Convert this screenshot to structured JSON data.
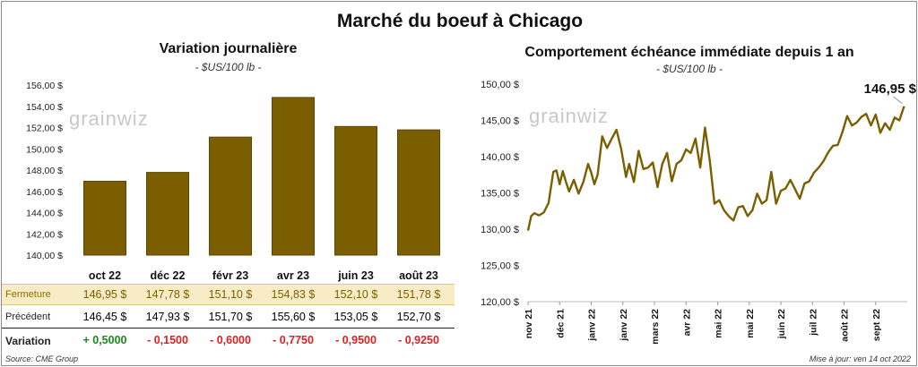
{
  "title": "Marché du boeuf à Chicago",
  "left_title": "Variation  journalière",
  "left_unit": "- $US/100 lb -",
  "right_title": "Comportement  échéance immédiate depuis 1 an",
  "right_unit": "- $US/100 lb -",
  "logo_text": "grainwiz",
  "source": "Source: CME Group",
  "updated": "Mise à jour: ven 14 oct 2022",
  "colors": {
    "bar": "#7b5e00",
    "bar_stroke": "#5c4500",
    "line": "#7b5e00",
    "close_row_bg": "#f7ecc6"
  },
  "table": {
    "close_label": "Fermeture",
    "prev_label": "Précédent",
    "var_label": "Variation",
    "close": [
      "146,95  $",
      "147,78  $",
      "151,10  $",
      "154,83  $",
      "152,10  $",
      "151,78  $"
    ],
    "prev": [
      "146,45  $",
      "147,93  $",
      "151,70  $",
      "155,60  $",
      "153,05  $",
      "152,70  $"
    ],
    "var": [
      "+ 0,5000",
      "- 0,1500",
      "- 0,6000",
      "- 0,7750",
      "- 0,9500",
      "- 0,9250"
    ]
  },
  "chart_data": [
    {
      "type": "bar",
      "title": "Variation  journalière",
      "subtitle": "- $US/100 lb -",
      "categories": [
        "oct 22",
        "déc 22",
        "févr 23",
        "avr 23",
        "juin 23",
        "août 23"
      ],
      "values": [
        146.95,
        147.78,
        151.1,
        154.83,
        152.1,
        151.78
      ],
      "ylim": [
        140,
        156
      ],
      "yticks": [
        140,
        142,
        144,
        146,
        148,
        150,
        152,
        154,
        156
      ],
      "ytick_labels": [
        "140,00 $",
        "142,00 $",
        "144,00 $",
        "146,00 $",
        "148,00 $",
        "150,00 $",
        "152,00 $",
        "154,00 $",
        "156,00 $"
      ],
      "grid": false
    },
    {
      "type": "line",
      "title": "Comportement  échéance immédiate depuis 1 an",
      "subtitle": "- $US/100 lb -",
      "annotation": "146,95 $",
      "ylim": [
        120,
        150
      ],
      "yticks": [
        120,
        125,
        130,
        135,
        140,
        145,
        150
      ],
      "ytick_labels": [
        "120,00 $",
        "125,00 $",
        "130,00 $",
        "135,00 $",
        "140,00 $",
        "145,00 $",
        "150,00 $"
      ],
      "xlim": [
        0,
        12
      ],
      "x_ticks": [
        0,
        1,
        2,
        3,
        4,
        5,
        6,
        7,
        8,
        9,
        10,
        11
      ],
      "x_tick_labels": [
        "nov 21",
        "déc 21",
        "janv 22",
        "janv 22",
        "mars 22",
        "avr 22",
        "mai 22",
        "mai 22",
        "juin 22",
        "juil 22",
        "août 22",
        "sept 22"
      ],
      "grid": false,
      "x": [
        0,
        0.1,
        0.2,
        0.35,
        0.5,
        0.65,
        0.8,
        0.9,
        1.0,
        1.1,
        1.2,
        1.3,
        1.45,
        1.6,
        1.75,
        1.9,
        2.0,
        2.1,
        2.2,
        2.35,
        2.5,
        2.65,
        2.8,
        2.95,
        3.1,
        3.2,
        3.35,
        3.5,
        3.65,
        3.8,
        3.95,
        4.1,
        4.25,
        4.4,
        4.55,
        4.7,
        4.85,
        5.0,
        5.15,
        5.3,
        5.45,
        5.6,
        5.75,
        5.9,
        6.05,
        6.2,
        6.35,
        6.5,
        6.65,
        6.8,
        6.95,
        7.1,
        7.25,
        7.4,
        7.55,
        7.7,
        7.85,
        8.0,
        8.15,
        8.3,
        8.45,
        8.6,
        8.75,
        8.9,
        9.05,
        9.2,
        9.35,
        9.5,
        9.65,
        9.8,
        9.95,
        10.1,
        10.25,
        10.4,
        10.55,
        10.7,
        10.85,
        11.0,
        11.15,
        11.3,
        11.45,
        11.6,
        11.75,
        11.9
      ],
      "y": [
        129.8,
        131.8,
        132.2,
        131.9,
        132.3,
        133.6,
        137.9,
        138.1,
        136.2,
        138.0,
        136.5,
        135.2,
        136.8,
        134.9,
        136.5,
        139.0,
        137.8,
        136.2,
        137.5,
        142.8,
        141.2,
        142.5,
        143.7,
        141.0,
        137.2,
        139.0,
        136.5,
        140.8,
        138.3,
        138.5,
        139.2,
        135.8,
        139.0,
        140.5,
        136.6,
        139.0,
        139.5,
        141.0,
        140.5,
        142.5,
        138.5,
        144.0,
        139.5,
        133.5,
        134.0,
        132.6,
        131.8,
        131.2,
        133.0,
        133.2,
        131.8,
        132.6,
        134.9,
        133.5,
        134.0,
        137.9,
        133.5,
        135.3,
        135.6,
        136.8,
        135.5,
        134.2,
        136.3,
        136.6,
        137.8,
        138.5,
        139.4,
        140.6,
        141.5,
        141.6,
        143.4,
        145.6,
        144.3,
        144.7,
        145.5,
        145.9,
        144.3,
        145.8,
        143.3,
        144.6,
        143.7,
        145.4,
        145.0,
        146.95
      ]
    }
  ]
}
